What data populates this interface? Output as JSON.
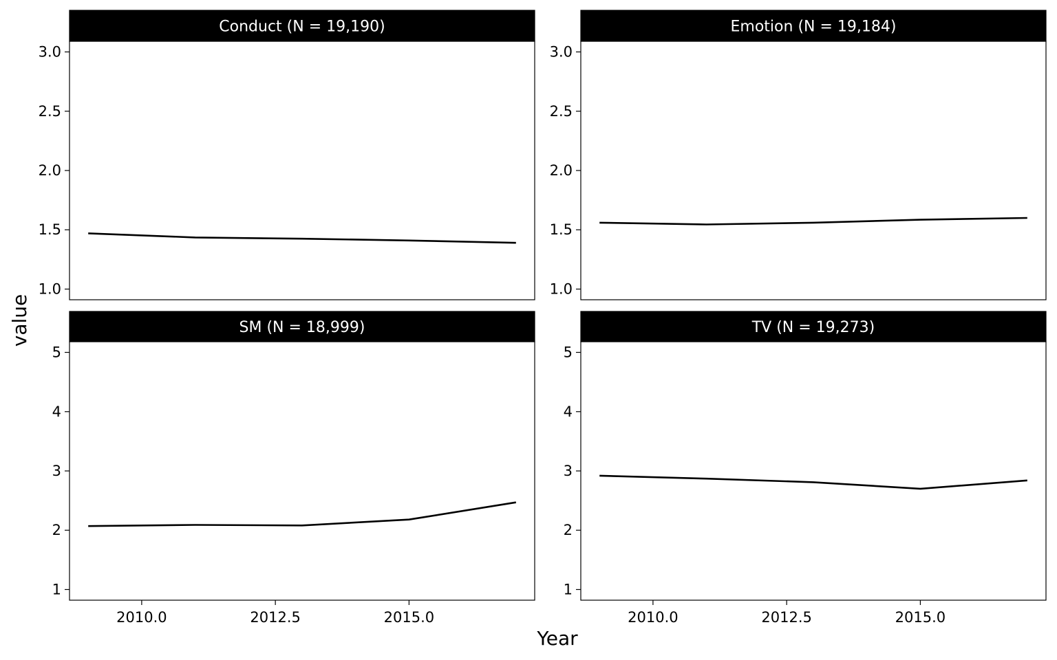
{
  "chart_data": {
    "type": "line",
    "xlabel": "Year",
    "ylabel": "value",
    "line_color": "#000000",
    "strip_color": "#000000",
    "panels": [
      {
        "title": "Conduct (N = 19,190)",
        "x": [
          2009,
          2011,
          2013,
          2015,
          2017
        ],
        "y": [
          1.47,
          1.435,
          1.425,
          1.41,
          1.39
        ],
        "xlim": [
          2008.65,
          2017.35
        ],
        "ylim": [
          0.91,
          3.09
        ],
        "yticks": [
          1.0,
          1.5,
          2.0,
          2.5,
          3.0
        ],
        "ytick_labels": [
          "1.0",
          "1.5",
          "2.0",
          "2.5",
          "3.0"
        ]
      },
      {
        "title": "Emotion (N = 19,184)",
        "x": [
          2009,
          2011,
          2013,
          2015,
          2017
        ],
        "y": [
          1.56,
          1.545,
          1.56,
          1.585,
          1.6
        ],
        "xlim": [
          2008.65,
          2017.35
        ],
        "ylim": [
          0.91,
          3.09
        ],
        "yticks": [
          1.0,
          1.5,
          2.0,
          2.5,
          3.0
        ],
        "ytick_labels": [
          "1.0",
          "1.5",
          "2.0",
          "2.5",
          "3.0"
        ]
      },
      {
        "title": "SM (N = 18,999)",
        "x": [
          2009,
          2011,
          2013,
          2015,
          2017
        ],
        "y": [
          2.07,
          2.09,
          2.08,
          2.18,
          2.47
        ],
        "xlim": [
          2008.65,
          2017.35
        ],
        "ylim": [
          0.82,
          5.18
        ],
        "yticks": [
          1,
          2,
          3,
          4,
          5
        ],
        "ytick_labels": [
          "1",
          "2",
          "3",
          "4",
          "5"
        ],
        "xticks": [
          2010,
          2012.5,
          2015
        ],
        "xtick_labels": [
          "2010.0",
          "2012.5",
          "2015.0"
        ]
      },
      {
        "title": "TV (N = 19,273)",
        "x": [
          2009,
          2011,
          2013,
          2015,
          2017
        ],
        "y": [
          2.92,
          2.87,
          2.81,
          2.7,
          2.84
        ],
        "xlim": [
          2008.65,
          2017.35
        ],
        "ylim": [
          0.82,
          5.18
        ],
        "yticks": [
          1,
          2,
          3,
          4,
          5
        ],
        "ytick_labels": [
          "1",
          "2",
          "3",
          "4",
          "5"
        ],
        "xticks": [
          2010,
          2012.5,
          2015
        ],
        "xtick_labels": [
          "2010.0",
          "2012.5",
          "2015.0"
        ]
      }
    ]
  }
}
